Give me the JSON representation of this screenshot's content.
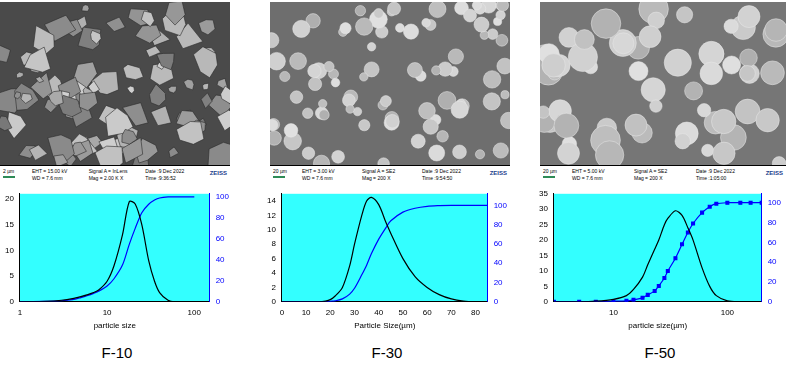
{
  "images": [
    {
      "scale_bar": "2 µm",
      "info": [
        "EHT = 15.00 kV",
        "WD = 7.6 mm",
        "Signal A = InLens",
        "Mag = 2.00 K X",
        "Date :9 Dec 2022",
        "Time :9:36:52"
      ],
      "brand": "ZEISS"
    },
    {
      "scale_bar": "20 µm",
      "info": [
        "EHT = 3.00 kV",
        "WD = 7.6 mm",
        "Signal A = SE2",
        "Mag = 200 X",
        "Date :9 Dec 2022",
        "Time :9:54:50"
      ],
      "brand": "ZEISS"
    },
    {
      "scale_bar": "20 µm",
      "info": [
        "EHT = 5.00 kV",
        "WD = 7.6 mm",
        "Signal A = SE2",
        "Mag = 200 X",
        "Date :9 Dec 2022",
        "Time :1:05:00"
      ],
      "brand": "ZEISS"
    }
  ],
  "chart_data": [
    {
      "type": "line",
      "title": "F-10",
      "xlabel": "particle size",
      "log": "x",
      "grid": false,
      "x": [
        1,
        2,
        3,
        4,
        5,
        6,
        7,
        8,
        10,
        12,
        15,
        18,
        21,
        25,
        30,
        35,
        40,
        50,
        60,
        80,
        100
      ],
      "series": [
        {
          "color": "#000000",
          "line_style": "solid",
          "marker": "none",
          "values": [
            0,
            0.1,
            0.3,
            0.6,
            1.0,
            1.4,
            1.8,
            2.3,
            4,
            7,
            13,
            19.5,
            19,
            15,
            8,
            4,
            1.8,
            0.3,
            0,
            0,
            0
          ]
        },
        {
          "color": "#0000ff",
          "line_style": "solid",
          "marker": "none",
          "axis": "y2",
          "values": [
            0,
            0.5,
            1,
            2,
            4,
            6,
            8,
            10,
            15,
            22,
            35,
            55,
            70,
            85,
            93,
            97,
            99,
            100,
            100,
            100,
            100
          ]
        }
      ],
      "xlim": [
        1,
        150
      ],
      "xticks": [
        1,
        10,
        100
      ],
      "ylim": [
        0,
        21
      ],
      "yticks": [
        0,
        5,
        10,
        15,
        20
      ],
      "y2lim": [
        0,
        103
      ],
      "y2ticks": [
        0,
        20,
        40,
        60,
        80,
        100
      ]
    },
    {
      "type": "line",
      "title": "F-30",
      "xlabel": "Particle Size(µm)",
      "grid": false,
      "x": [
        0,
        5,
        10,
        15,
        18,
        20,
        22,
        25,
        28,
        30,
        33,
        35,
        37,
        40,
        43,
        45,
        50,
        55,
        60,
        65,
        70,
        75,
        80,
        85
      ],
      "series": [
        {
          "color": "#000000",
          "line_style": "solid",
          "marker": "none",
          "values": [
            0,
            0,
            0,
            0,
            0.1,
            0.3,
            0.8,
            2,
            5,
            8,
            12,
            14,
            14.5,
            13.5,
            11,
            9.5,
            6,
            3.5,
            2,
            1,
            0.4,
            0.1,
            0,
            0
          ]
        },
        {
          "color": "#0000ff",
          "line_style": "solid",
          "marker": "none",
          "axis": "y2",
          "values": [
            0,
            0,
            0,
            0,
            0,
            0.5,
            1,
            3,
            8,
            14,
            28,
            38,
            50,
            65,
            77,
            84,
            93,
            97,
            99,
            99.7,
            100,
            100,
            100,
            100
          ]
        }
      ],
      "xlim": [
        0,
        85
      ],
      "xticks": [
        0,
        10,
        20,
        30,
        40,
        50,
        60,
        70,
        80
      ],
      "ylim": [
        0,
        15
      ],
      "yticks": [
        0,
        2,
        4,
        6,
        8,
        10,
        12,
        14
      ],
      "y2lim": [
        0,
        112
      ],
      "y2ticks": [
        0,
        20,
        40,
        60,
        80,
        100
      ]
    },
    {
      "type": "line",
      "title": "F-50",
      "xlabel": "particle size(µm)",
      "log": "x",
      "grid": false,
      "x": [
        3,
        5,
        7,
        10,
        13,
        15,
        18,
        20,
        23,
        25,
        28,
        30,
        35,
        40,
        45,
        50,
        60,
        70,
        80,
        100,
        130,
        160,
        200
      ],
      "series": [
        {
          "color": "#000000",
          "line_style": "solid",
          "marker": "none",
          "values": [
            0,
            0,
            0.2,
            0.8,
            2,
            4,
            8,
            12,
            17,
            20,
            25,
            27,
            29.5,
            28,
            24,
            20,
            11,
            5,
            2,
            0.3,
            0,
            0,
            0
          ]
        },
        {
          "color": "#0000ff",
          "line_style": "solid",
          "marker": "square",
          "axis": "y2",
          "values": [
            0,
            0,
            0,
            0.5,
            1,
            2,
            4,
            7,
            11,
            16,
            24,
            31,
            44,
            58,
            70,
            79,
            90,
            96,
            99,
            100,
            100,
            100,
            100
          ]
        }
      ],
      "xlim": [
        3,
        200
      ],
      "xticks": [
        10,
        100
      ],
      "ylim": [
        0,
        35
      ],
      "yticks": [
        0,
        5,
        10,
        15,
        20,
        25,
        30,
        35
      ],
      "y2lim": [
        0,
        109
      ],
      "y2ticks": [
        0,
        20,
        40,
        60,
        80,
        100
      ]
    }
  ]
}
